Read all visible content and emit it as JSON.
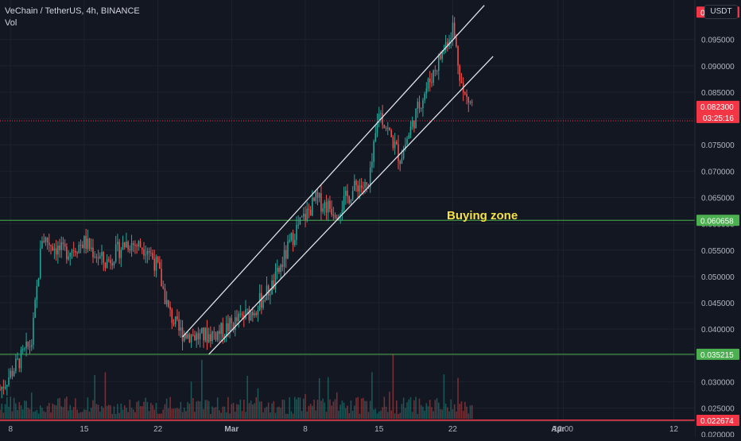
{
  "header": {
    "symbol_line": "VeChain / TetherUS, 4h, BINANCE",
    "volume_label": "Vol",
    "currency": "USDT"
  },
  "annotations": {
    "buying_zone": "Buying zone"
  },
  "price_labels": [
    {
      "text": "0.100193",
      "color": "#f23645",
      "value": 0.100193
    },
    {
      "text": "0.082300",
      "color": "#f23645",
      "value": 0.0823,
      "sub": "03:25:16"
    },
    {
      "text": "0.060658",
      "color": "#4caf50",
      "value": 0.060658
    },
    {
      "text": "0.035215",
      "color": "#4caf50",
      "value": 0.035215
    },
    {
      "text": "0.022674",
      "color": "#f23645",
      "value": 0.022674
    }
  ],
  "chart_data": {
    "type": "candlestick",
    "title": "VeChain / TetherUS, 4h, BINANCE",
    "y_ticks": [
      "0.095000",
      "0.090000",
      "0.085000",
      "0.080000",
      "0.075000",
      "0.070000",
      "0.065000",
      "0.060000",
      "0.055000",
      "0.050000",
      "0.045000",
      "0.040000",
      "0.035000",
      "0.030000",
      "0.025000",
      "0.020000"
    ],
    "y_tick_values": [
      0.095,
      0.09,
      0.085,
      0.08,
      0.075,
      0.07,
      0.065,
      0.06,
      0.055,
      0.05,
      0.045,
      0.04,
      0.035,
      0.03,
      0.025,
      0.02
    ],
    "x_ticks": [
      "8",
      "15",
      "22",
      "Mar",
      "8",
      "15",
      "22",
      "Apr",
      "12:00",
      "12"
    ],
    "x_tick_dates": [
      "2021-02-08",
      "2021-02-15",
      "2021-02-22",
      "2021-03-01",
      "2021-03-08",
      "2021-03-15",
      "2021-03-22",
      "2021-04-01",
      "2021-04-01T12:00",
      "2021-04-12"
    ],
    "x_range": [
      "2021-02-07",
      "2021-04-14"
    ],
    "ylim": [
      0.0195,
      0.1025
    ],
    "horizontal_lines": [
      {
        "value": 0.060658,
        "color": "#4caf50"
      },
      {
        "value": 0.035215,
        "color": "#4caf50"
      },
      {
        "value": 0.022674,
        "color": "#f23645"
      }
    ],
    "channel": {
      "upper": {
        "start": [
          "2021-02-24T08:00",
          0.0385
        ],
        "end": [
          "2021-03-25",
          0.1015
        ]
      },
      "lower": {
        "start": [
          "2021-02-26T20:00",
          0.0352
        ],
        "end": [
          "2021-03-25T20:00",
          0.0918
        ]
      }
    },
    "last_price": 0.0823,
    "colors": {
      "up": "#26a69a",
      "down": "#ef5350",
      "grid": "#1e222d",
      "axis_text": "#b2b5be"
    },
    "key_points": [
      {
        "date": "2021-02-07",
        "close": 0.0285
      },
      {
        "date": "2021-02-10",
        "close": 0.0375
      },
      {
        "date": "2021-02-11",
        "close": 0.0575
      },
      {
        "date": "2021-02-13",
        "close": 0.0545
      },
      {
        "date": "2021-02-15",
        "close": 0.0565
      },
      {
        "date": "2021-02-17",
        "close": 0.0525
      },
      {
        "date": "2021-02-19",
        "close": 0.0565
      },
      {
        "date": "2021-02-21",
        "close": 0.0555
      },
      {
        "date": "2021-02-22",
        "close": 0.0515
      },
      {
        "date": "2021-02-23",
        "close": 0.0435
      },
      {
        "date": "2021-02-24",
        "close": 0.0395
      },
      {
        "date": "2021-02-26",
        "close": 0.0385
      },
      {
        "date": "2021-02-28",
        "close": 0.0395
      },
      {
        "date": "2021-03-03",
        "close": 0.0435
      },
      {
        "date": "2021-03-05",
        "close": 0.0485
      },
      {
        "date": "2021-03-07",
        "close": 0.0585
      },
      {
        "date": "2021-03-09",
        "close": 0.0645
      },
      {
        "date": "2021-03-11",
        "close": 0.0625
      },
      {
        "date": "2021-03-13",
        "close": 0.0675
      },
      {
        "date": "2021-03-14",
        "close": 0.0665
      },
      {
        "date": "2021-03-15",
        "close": 0.0815
      },
      {
        "date": "2021-03-17",
        "close": 0.0725
      },
      {
        "date": "2021-03-19",
        "close": 0.0835
      },
      {
        "date": "2021-03-21",
        "close": 0.0925
      },
      {
        "date": "2021-03-22",
        "close": 0.0975
      },
      {
        "date": "2021-03-23",
        "close": 0.0845
      },
      {
        "date": "2021-03-24",
        "close": 0.0823
      }
    ]
  }
}
